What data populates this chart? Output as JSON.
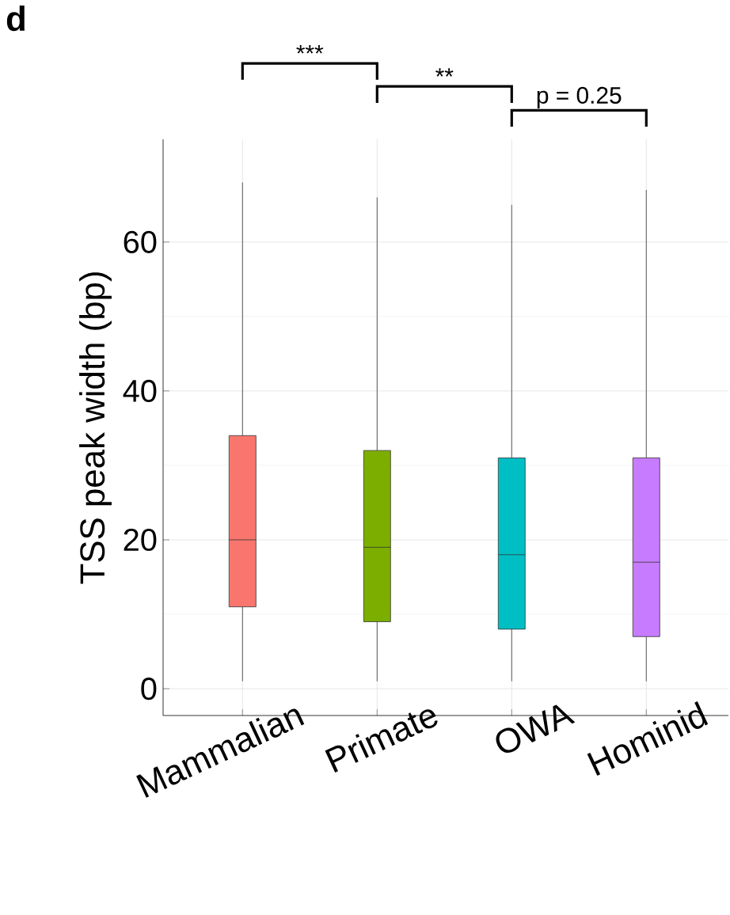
{
  "chart_data": {
    "type": "box",
    "ylabel": "TSS peak width (bp)",
    "categories": [
      "Mammalian",
      "Primate",
      "OWA",
      "Hominid"
    ],
    "colors": [
      "#f8766d",
      "#7cae00",
      "#00bfc4",
      "#c77cff"
    ],
    "boxes": [
      {
        "low": 1,
        "q1": 11,
        "median": 20,
        "q3": 34,
        "high": 68
      },
      {
        "low": 1,
        "q1": 9,
        "median": 19,
        "q3": 32,
        "high": 66
      },
      {
        "low": 1,
        "q1": 8,
        "median": 18,
        "q3": 31,
        "high": 65
      },
      {
        "low": 1,
        "q1": 7,
        "median": 17,
        "q3": 31,
        "high": 67
      }
    ],
    "ylim": [
      -3.6,
      73.8
    ],
    "yticks": [
      0,
      20,
      40,
      60
    ],
    "grid": true,
    "annotations": [
      "d",
      "***",
      "**",
      "p = 0.25"
    ]
  }
}
